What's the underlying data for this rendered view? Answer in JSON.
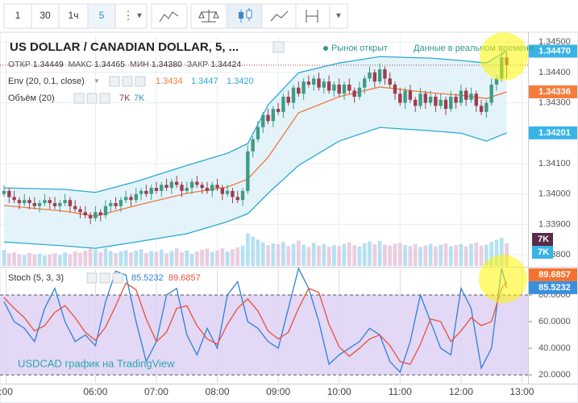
{
  "toolbar": {
    "intervals": [
      "1",
      "30",
      "1ч",
      "5"
    ],
    "active_interval": 3
  },
  "header": {
    "title": "US DOLLAR / CANADIAN DOLLAR, 5, ...",
    "market_status": "Рынок открыт",
    "data_status": "Данные в реальном времени",
    "ohlc": [
      {
        "label": "ОТКР",
        "value": "1.34449"
      },
      {
        "label": "МАКС",
        "value": "1.34465"
      },
      {
        "label": "МИН",
        "value": "1.34380"
      },
      {
        "label": "ЗАКР",
        "value": "1.34424"
      }
    ]
  },
  "legend": {
    "env": {
      "label": "Env (20, 0.1, close)",
      "values": [
        {
          "text": "1.3434",
          "color": "#f07a3a"
        },
        {
          "text": "1.3447",
          "color": "#2aa9d6"
        },
        {
          "text": "1.3420",
          "color": "#2aa9d6"
        }
      ]
    },
    "volume": {
      "label": "Объём (20)"
    },
    "stoch": {
      "label": "Stoch (5, 3, 3)"
    }
  },
  "watermark": "USDCAD график на TradingView",
  "chart_data": [
    {
      "type": "candlestick",
      "x": [
        "04:30",
        "04:35",
        "04:40",
        "04:45",
        "04:50",
        "04:55",
        "05:00",
        "05:05",
        "05:10",
        "05:15",
        "05:20",
        "05:25",
        "05:30",
        "05:35",
        "05:40",
        "05:45",
        "05:50",
        "05:55",
        "06:00",
        "06:05",
        "06:10",
        "06:15",
        "06:20",
        "06:25",
        "06:30",
        "06:35",
        "06:40",
        "06:45",
        "06:50",
        "06:55",
        "07:00",
        "07:05",
        "07:10",
        "07:15",
        "07:20",
        "07:25",
        "07:30",
        "07:35",
        "07:40",
        "07:45",
        "07:50",
        "07:55",
        "08:00",
        "08:05",
        "08:10",
        "08:15",
        "08:20",
        "08:25",
        "08:30",
        "08:35",
        "08:40",
        "08:45",
        "08:50",
        "08:55",
        "09:00",
        "09:05",
        "09:10",
        "09:15",
        "09:20",
        "09:25",
        "09:30",
        "09:35",
        "09:40",
        "09:45",
        "09:50",
        "09:55",
        "10:00",
        "10:05",
        "10:10",
        "10:15",
        "10:20",
        "10:25",
        "10:30",
        "10:35",
        "10:40",
        "10:45",
        "10:50",
        "10:55",
        "11:00",
        "11:05",
        "11:10",
        "11:15",
        "11:20",
        "11:25",
        "11:30",
        "11:35",
        "11:40",
        "11:45",
        "11:50",
        "11:55",
        "12:00",
        "12:05",
        "12:10",
        "12:15",
        "12:20",
        "12:25",
        "12:30",
        "12:35",
        "12:40",
        "12:45"
      ],
      "open": [
        1.34,
        1.3401,
        1.3399,
        1.3398,
        1.3397,
        1.3398,
        1.3397,
        1.3396,
        1.3397,
        1.3398,
        1.3397,
        1.3396,
        1.3397,
        1.3398,
        1.3396,
        1.3395,
        1.3394,
        1.3393,
        1.3392,
        1.3394,
        1.3393,
        1.3396,
        1.3397,
        1.3396,
        1.3398,
        1.3399,
        1.3398,
        1.34,
        1.3401,
        1.34,
        1.3402,
        1.3401,
        1.3403,
        1.3402,
        1.3404,
        1.3403,
        1.3401,
        1.3402,
        1.3404,
        1.3403,
        1.3402,
        1.3401,
        1.3403,
        1.3402,
        1.34,
        1.3401,
        1.3399,
        1.3398,
        1.3401,
        1.3414,
        1.3418,
        1.3422,
        1.3426,
        1.3424,
        1.3428,
        1.3427,
        1.3432,
        1.343,
        1.3435,
        1.3433,
        1.3437,
        1.3436,
        1.3438,
        1.3435,
        1.3437,
        1.3434,
        1.3436,
        1.3433,
        1.3436,
        1.3434,
        1.3432,
        1.3435,
        1.3438,
        1.344,
        1.3437,
        1.3441,
        1.3438,
        1.3436,
        1.3433,
        1.343,
        1.3434,
        1.3431,
        1.3429,
        1.3433,
        1.343,
        1.3432,
        1.3429,
        1.3431,
        1.3428,
        1.3432,
        1.343,
        1.3434,
        1.3431,
        1.3433,
        1.3429,
        1.3427,
        1.343,
        1.3436,
        1.3438,
        1.34449
      ],
      "high": [
        1.3403,
        1.3402,
        1.3401,
        1.3399,
        1.34,
        1.3399,
        1.3399,
        1.3398,
        1.34,
        1.3399,
        1.3399,
        1.3398,
        1.34,
        1.3399,
        1.3398,
        1.3396,
        1.3396,
        1.3394,
        1.3396,
        1.3395,
        1.3398,
        1.3398,
        1.3399,
        1.3399,
        1.3401,
        1.34,
        1.3402,
        1.3402,
        1.3403,
        1.3403,
        1.3404,
        1.3404,
        1.3405,
        1.3405,
        1.3406,
        1.3404,
        1.3404,
        1.3405,
        1.3406,
        1.3404,
        1.3404,
        1.3404,
        1.3405,
        1.3403,
        1.3403,
        1.3402,
        1.3401,
        1.3402,
        1.3416,
        1.3419,
        1.3424,
        1.3427,
        1.3428,
        1.3429,
        1.343,
        1.3433,
        1.3434,
        1.3436,
        1.3437,
        1.3438,
        1.3439,
        1.3439,
        1.344,
        1.3438,
        1.3439,
        1.3437,
        1.3438,
        1.3437,
        1.3438,
        1.3435,
        1.3437,
        1.3439,
        1.3442,
        1.3441,
        1.3443,
        1.3442,
        1.344,
        1.3437,
        1.3435,
        1.3435,
        1.3436,
        1.3432,
        1.3435,
        1.3434,
        1.3434,
        1.3433,
        1.3433,
        1.3432,
        1.3434,
        1.3433,
        1.3436,
        1.3435,
        1.3435,
        1.3434,
        1.3431,
        1.3431,
        1.3438,
        1.3439,
        1.3447,
        1.34465
      ],
      "low": [
        1.3399,
        1.3397,
        1.3397,
        1.3395,
        1.3396,
        1.3395,
        1.3395,
        1.3394,
        1.3396,
        1.3395,
        1.3395,
        1.3394,
        1.3396,
        1.3394,
        1.3394,
        1.3392,
        1.3392,
        1.339,
        1.3391,
        1.3391,
        1.3392,
        1.3394,
        1.3395,
        1.3394,
        1.3397,
        1.3396,
        1.3397,
        1.3398,
        1.3399,
        1.3398,
        1.34,
        1.3399,
        1.3401,
        1.34,
        1.3402,
        1.3399,
        1.34,
        1.34,
        1.3402,
        1.34,
        1.34,
        1.3399,
        1.3401,
        1.3398,
        1.3399,
        1.3397,
        1.3397,
        1.3396,
        1.34,
        1.3412,
        1.3417,
        1.342,
        1.3423,
        1.3422,
        1.3426,
        1.3425,
        1.3429,
        1.3428,
        1.3432,
        1.3431,
        1.3435,
        1.3434,
        1.3434,
        1.3433,
        1.3433,
        1.3432,
        1.3432,
        1.3431,
        1.3433,
        1.343,
        1.3431,
        1.3433,
        1.3437,
        1.3435,
        1.3436,
        1.3436,
        1.3435,
        1.3431,
        1.3429,
        1.3428,
        1.343,
        1.3427,
        1.3428,
        1.3428,
        1.3429,
        1.3427,
        1.3428,
        1.3426,
        1.3427,
        1.3428,
        1.3429,
        1.3429,
        1.343,
        1.3427,
        1.3426,
        1.3425,
        1.3429,
        1.3434,
        1.3437,
        1.3438
      ],
      "close": [
        1.3401,
        1.3399,
        1.3398,
        1.3397,
        1.3398,
        1.3397,
        1.3396,
        1.3397,
        1.3398,
        1.3397,
        1.3396,
        1.3397,
        1.3398,
        1.3396,
        1.3395,
        1.3394,
        1.3393,
        1.3392,
        1.3394,
        1.3393,
        1.3396,
        1.3397,
        1.3396,
        1.3398,
        1.3399,
        1.3398,
        1.34,
        1.3401,
        1.34,
        1.3402,
        1.3401,
        1.3403,
        1.3402,
        1.3404,
        1.3403,
        1.3401,
        1.3402,
        1.3404,
        1.3403,
        1.3402,
        1.3401,
        1.3403,
        1.3402,
        1.34,
        1.3401,
        1.3399,
        1.3398,
        1.3401,
        1.3414,
        1.3418,
        1.3422,
        1.3426,
        1.3424,
        1.3428,
        1.3427,
        1.3432,
        1.343,
        1.3435,
        1.3433,
        1.3437,
        1.3436,
        1.3438,
        1.3435,
        1.3437,
        1.3434,
        1.3436,
        1.3433,
        1.3436,
        1.3434,
        1.3432,
        1.3435,
        1.3438,
        1.344,
        1.3437,
        1.3441,
        1.3438,
        1.3436,
        1.3433,
        1.343,
        1.3434,
        1.3431,
        1.3429,
        1.3433,
        1.343,
        1.3432,
        1.3429,
        1.3431,
        1.3428,
        1.3432,
        1.343,
        1.3434,
        1.3431,
        1.3433,
        1.3429,
        1.3427,
        1.343,
        1.3436,
        1.3438,
        1.3445,
        1.34424
      ],
      "up_color": "#3f9c84",
      "down_color": "#9e3d4f",
      "last_price_color": "#9e3d4f",
      "xlim": [
        "04:26",
        "13:06"
      ],
      "xticks": [
        {
          "value": "04:32",
          "label": ":00"
        },
        "06:00",
        "07:00",
        "08:00",
        "09:00",
        "10:00",
        "11:00",
        "12:00",
        "13:00"
      ],
      "ylim": [
        1.33763,
        1.34519
      ],
      "yticks": [
        {
          "value": 1.345,
          "label": "1.34500"
        },
        {
          "value": 1.344,
          "label": "1.34400"
        },
        {
          "value": 1.343,
          "label": "1.34300"
        },
        {
          "value": 1.341,
          "label": "1.34100"
        },
        {
          "value": 1.34,
          "label": "1.34000"
        },
        {
          "value": 1.339,
          "label": "1.33900"
        },
        {
          "value": 1.338,
          "label": "1.33800"
        }
      ],
      "grid": true,
      "envelope": {
        "x": [
          "04:30",
          "05:30",
          "06:00",
          "06:40",
          "07:30",
          "08:10",
          "08:30",
          "08:50",
          "09:20",
          "10:00",
          "10:40",
          "11:30",
          "12:00",
          "12:25",
          "12:45"
        ],
        "fill": "#e4f3fa",
        "upper": {
          "color": "#2aa9d6",
          "values": [
            1.3402,
            1.34015,
            1.34005,
            1.34041,
            1.34094,
            1.34134,
            1.34166,
            1.34293,
            1.34399,
            1.34431,
            1.34452,
            1.34447,
            1.34439,
            1.34431,
            1.3447
          ]
        },
        "basis": {
          "color": "#f07a3a",
          "values": [
            1.33962,
            1.33943,
            1.33927,
            1.33962,
            1.34002,
            1.34023,
            1.34049,
            1.34121,
            1.34267,
            1.3432,
            1.34352,
            1.34333,
            1.34325,
            1.34314,
            1.34336
          ]
        },
        "lower": {
          "color": "#2aa9d6",
          "values": [
            1.33842,
            1.33829,
            1.33821,
            1.33842,
            1.33869,
            1.33909,
            1.33935,
            1.34002,
            1.34094,
            1.34174,
            1.34219,
            1.34208,
            1.342,
            1.34174,
            1.34201
          ]
        }
      },
      "volume": {
        "ylim": [
          0,
          8000
        ],
        "up_color": "#a9dcee",
        "down_color": "#e6c6da",
        "values": [
          3500,
          2800,
          3000,
          2600,
          2400,
          2900,
          2500,
          2700,
          2300,
          2600,
          2800,
          2400,
          3000,
          2600,
          3200,
          2900,
          3400,
          3800,
          3600,
          3100,
          3900,
          3300,
          2800,
          3200,
          3500,
          3000,
          3400,
          3700,
          2900,
          3300,
          3100,
          3600,
          2800,
          3300,
          3900,
          3000,
          3400,
          2700,
          3200,
          3600,
          3800,
          3100,
          3400,
          3900,
          3200,
          3700,
          4100,
          4500,
          7200,
          6500,
          5800,
          5200,
          4600,
          5000,
          4800,
          5300,
          4400,
          4900,
          5600,
          4700,
          4200,
          5100,
          4500,
          4800,
          4300,
          4600,
          4400,
          4900,
          5200,
          4600,
          4300,
          5000,
          5400,
          4800,
          5500,
          4700,
          4500,
          4900,
          5100,
          4600,
          4400,
          4800,
          4200,
          4500,
          4900,
          4300,
          4700,
          5000,
          4400,
          4600,
          4800,
          4300,
          4900,
          5200,
          4500,
          4700,
          5300,
          5800,
          6200,
          5000
        ]
      },
      "price_tags": [
        {
          "value": 1.3447,
          "label": "1.34470",
          "color": "#39b4e6"
        },
        {
          "value": 1.34336,
          "label": "1.34336",
          "color": "#f57d3b"
        },
        {
          "value": 1.34201,
          "label": "1.34201",
          "color": "#39b4e6"
        }
      ],
      "volume_tags": [
        {
          "label": "7K",
          "color": "#5b2a48"
        },
        {
          "label": "7K",
          "color": "#39b4e6"
        }
      ]
    },
    {
      "type": "line",
      "x": [
        "04:30",
        "04:40",
        "04:50",
        "05:00",
        "05:10",
        "05:20",
        "05:30",
        "05:40",
        "05:50",
        "06:00",
        "06:10",
        "06:20",
        "06:30",
        "06:40",
        "06:50",
        "07:00",
        "07:10",
        "07:20",
        "07:30",
        "07:40",
        "07:50",
        "08:00",
        "08:10",
        "08:20",
        "08:30",
        "08:40",
        "08:50",
        "09:00",
        "09:10",
        "09:20",
        "09:30",
        "09:40",
        "09:50",
        "10:00",
        "10:10",
        "10:20",
        "10:30",
        "10:40",
        "10:50",
        "11:00",
        "11:10",
        "11:20",
        "11:30",
        "11:40",
        "11:50",
        "12:00",
        "12:10",
        "12:20",
        "12:30",
        "12:40",
        "12:45"
      ],
      "series": [
        {
          "color": "#2f80d8",
          "tag_color": "#3b8fdd",
          "values": [
            75,
            60,
            55,
            45,
            70,
            85,
            60,
            45,
            50,
            42,
            75,
            98,
            95,
            60,
            30,
            45,
            80,
            85,
            50,
            35,
            55,
            40,
            80,
            90,
            60,
            55,
            45,
            40,
            70,
            100,
            85,
            60,
            28,
            35,
            40,
            45,
            55,
            50,
            30,
            22,
            45,
            80,
            60,
            40,
            35,
            85,
            70,
            25,
            40,
            100,
            85.5232
          ]
        },
        {
          "color": "#e8503a",
          "tag_color": "#f5722e",
          "values": [
            78,
            70,
            63,
            53,
            57,
            67,
            72,
            63,
            52,
            46,
            56,
            72,
            89,
            84,
            62,
            45,
            52,
            70,
            72,
            57,
            47,
            43,
            58,
            70,
            77,
            68,
            53,
            47,
            52,
            70,
            85,
            82,
            58,
            41,
            34,
            40,
            47,
            50,
            42,
            30,
            28,
            43,
            62,
            60,
            45,
            53,
            63,
            57,
            60,
            85,
            89.6857
          ]
        }
      ],
      "xlim": [
        "04:26",
        "13:06"
      ],
      "ylim": [
        14,
        100
      ],
      "yticks": [
        {
          "value": 80,
          "label": "80.0000"
        },
        {
          "value": 60,
          "label": "60.0000"
        },
        {
          "value": 40,
          "label": "40.0000"
        },
        {
          "value": 20,
          "label": "20.0000"
        }
      ],
      "band": [
        20,
        80
      ],
      "band_color": "#e3d8f6"
    }
  ]
}
